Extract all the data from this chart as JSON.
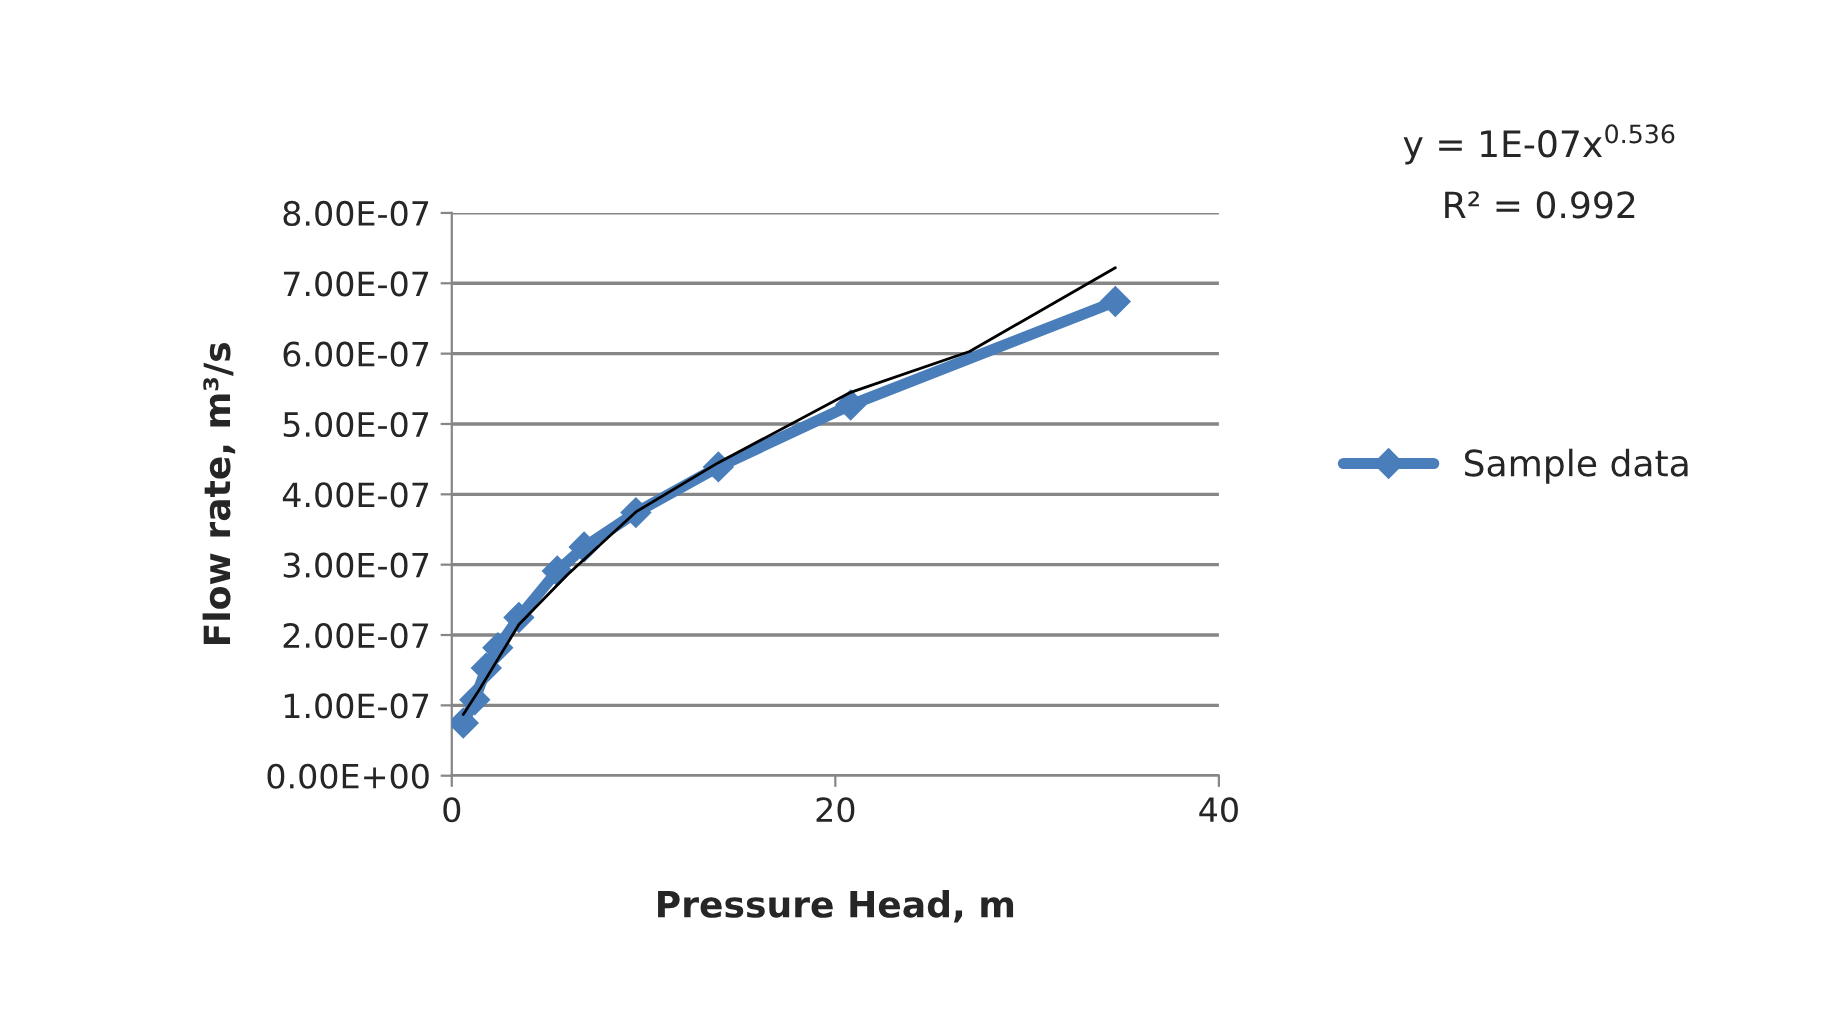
{
  "chart_data": {
    "type": "line",
    "xlabel": "Pressure Head, m",
    "ylabel": "Flow rate, m³/s",
    "xlim": [
      0,
      40
    ],
    "xticks": [
      0,
      20,
      40
    ],
    "ylim": [
      0,
      8e-07
    ],
    "yticks": [
      {
        "value": 0,
        "label": "0.00E+00"
      },
      {
        "value": 1e-07,
        "label": "1.00E-07"
      },
      {
        "value": 2e-07,
        "label": "2.00E-07"
      },
      {
        "value": 3e-07,
        "label": "3.00E-07"
      },
      {
        "value": 4e-07,
        "label": "4.00E-07"
      },
      {
        "value": 5e-07,
        "label": "5.00E-07"
      },
      {
        "value": 6e-07,
        "label": "6.00E-07"
      },
      {
        "value": 7e-07,
        "label": "7.00E-07"
      },
      {
        "value": 8e-07,
        "label": "8.00E-07"
      }
    ],
    "grid": "y",
    "legend": "right",
    "marker": "diamond",
    "line_style": "solid",
    "series": [
      {
        "name": "Sample data",
        "color": "#4a7ebb",
        "x": [
          0.6,
          1.2,
          1.8,
          2.4,
          3.5,
          5.5,
          6.9,
          9.6,
          13.9,
          20.8,
          34.6
        ],
        "values": [
          7.5e-08,
          1.08e-07,
          1.53e-07,
          1.82e-07,
          2.25e-07,
          2.91e-07,
          3.25e-07,
          3.74e-07,
          4.39e-07,
          5.27e-07,
          6.74e-07
        ]
      },
      {
        "type": "line",
        "color": "#000000",
        "marker": "none",
        "x": [
          0.6,
          1.5,
          3.5,
          6,
          9.6,
          13.9,
          20.8,
          27,
          34.6
        ],
        "values": [
          8.7e-08,
          1.25e-07,
          2.15e-07,
          2.85e-07,
          3.75e-07,
          4.45e-07,
          5.45e-07,
          6.03e-07,
          7.22e-07
        ]
      }
    ],
    "annotations": [
      "y = 1E-07x$^{0.536}$",
      "R² = 0.992"
    ]
  }
}
